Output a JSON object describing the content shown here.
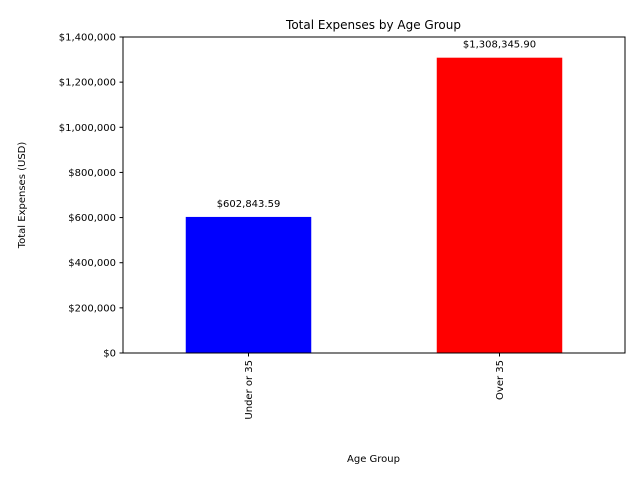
{
  "chart_data": {
    "type": "bar",
    "title": "Total Expenses by Age Group",
    "xlabel": "Age Group",
    "ylabel": "Total Expenses (USD)",
    "categories": [
      "Under or 35",
      "Over 35"
    ],
    "values": [
      602843.59,
      1308345.9
    ],
    "value_labels": [
      "$602,843.59",
      "$1,308,345.90"
    ],
    "colors": [
      "#0000ff",
      "#ff0000"
    ],
    "ylim": [
      0,
      1400000
    ],
    "yticks": [
      0,
      200000,
      400000,
      600000,
      800000,
      1000000,
      1200000,
      1400000
    ],
    "ytick_labels": [
      "$0",
      "$200,000",
      "$400,000",
      "$600,000",
      "$800,000",
      "$1,000,000",
      "$1,200,000",
      "$1,400,000"
    ],
    "grid": false,
    "legend": false
  }
}
